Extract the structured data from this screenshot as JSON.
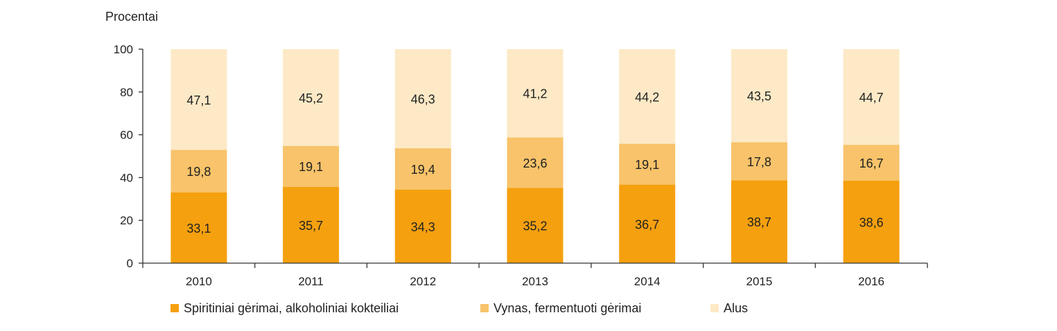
{
  "chart_data": {
    "type": "bar",
    "stacked": true,
    "ylabel": "Procentai",
    "ylim": [
      0,
      100
    ],
    "yticks": [
      0,
      20,
      40,
      60,
      80,
      100
    ],
    "grid": false,
    "legend_position": "bottom",
    "categories": [
      "2010",
      "2011",
      "2012",
      "2013",
      "2014",
      "2015",
      "2016"
    ],
    "series": [
      {
        "name": "Spiritiniai gėrimai, alkoholiniai kokteiliai",
        "color": "#f5a00f",
        "values": [
          33.1,
          35.7,
          34.3,
          35.2,
          36.7,
          38.7,
          38.6
        ],
        "labels": [
          "33,1",
          "35,7",
          "34,3",
          "35,2",
          "36,7",
          "38,7",
          "38,6"
        ]
      },
      {
        "name": "Vynas, fermentuoti gėrimai",
        "color": "#f8c36a",
        "values": [
          19.8,
          19.1,
          19.4,
          23.6,
          19.1,
          17.8,
          16.7
        ],
        "labels": [
          "19,8",
          "19,1",
          "19,4",
          "23,6",
          "19,1",
          "17,8",
          "16,7"
        ]
      },
      {
        "name": "Alus",
        "color": "#fde9c6",
        "values": [
          47.1,
          45.2,
          46.3,
          41.2,
          44.2,
          43.5,
          44.7
        ],
        "labels": [
          "47,1",
          "45,2",
          "46,3",
          "41,2",
          "44,2",
          "43,5",
          "44,7"
        ]
      }
    ]
  }
}
